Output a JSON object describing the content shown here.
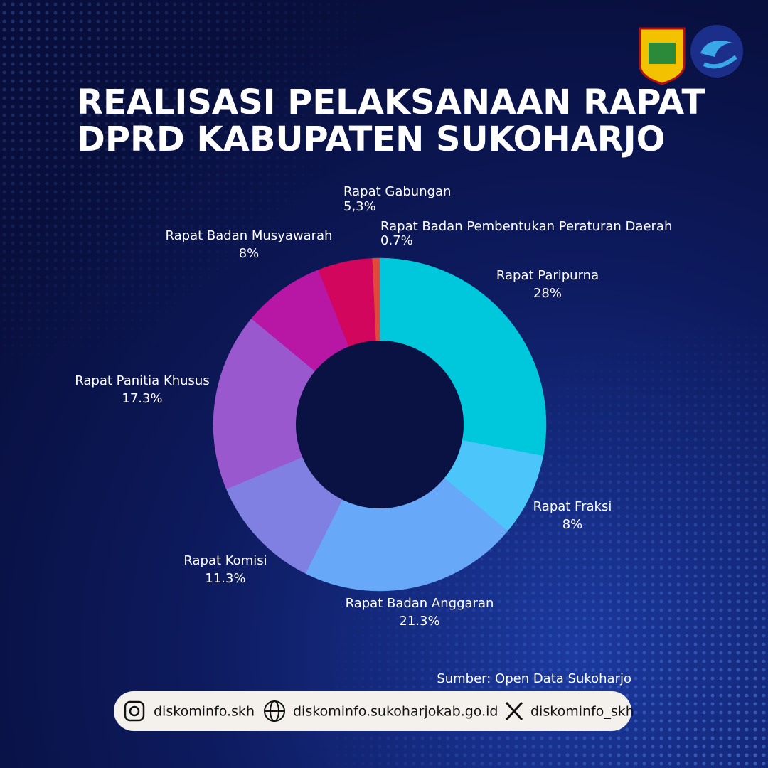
{
  "chart_data": {
    "type": "pie",
    "hole": true,
    "title_lines": [
      "REALISASI PELAKSANAAN RAPAT",
      "DPRD KABUPATEN SUKOHARJO"
    ],
    "categories": [
      "Rapat Paripurna",
      "Rapat Fraksi",
      "Rapat Badan Anggaran",
      "Rapat Komisi",
      "Rapat Panitia Khusus",
      "Rapat Badan Musyawarah",
      "Rapat Gabungan",
      "Rapat Badan Pembentukan Peraturan Daerah"
    ],
    "values": [
      28,
      8,
      21.3,
      11.3,
      17.3,
      8,
      5.3,
      0.7
    ],
    "value_labels": [
      "28%",
      "8%",
      "21.3%",
      "11.3%",
      "17.3%",
      "8%",
      "5,3%",
      "0.7%"
    ],
    "colors": [
      "#00c8dc",
      "#4cc6fa",
      "#68a8f8",
      "#7f80e2",
      "#9a58cf",
      "#b817a6",
      "#d2065c",
      "#e4483c"
    ],
    "source": "Sumber: Open Data Sukoharjo"
  },
  "footer": {
    "instagram": "diskominfo.skh",
    "website": "diskominfo.sukoharjokab.go.id",
    "x": "diskominfo_skh"
  }
}
